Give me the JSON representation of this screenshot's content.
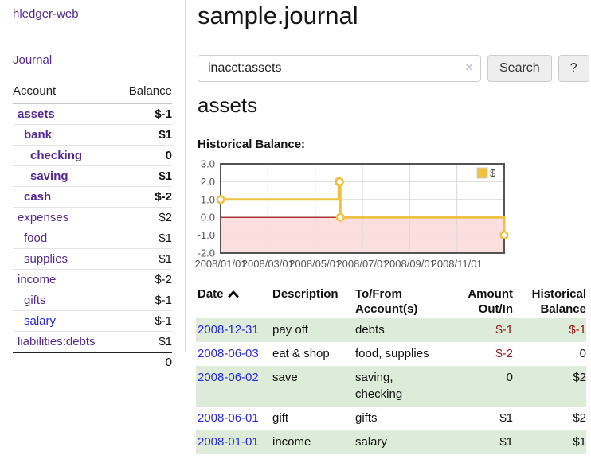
{
  "app": {
    "title": "hledger-web"
  },
  "sidebar": {
    "journal_label": "Journal",
    "accounts": {
      "header_account": "Account",
      "header_balance": "Balance",
      "rows": [
        {
          "name": "assets",
          "balance": "$-1",
          "level": 1,
          "bold": true,
          "name_color": "purple",
          "balance_class": "neg-strong"
        },
        {
          "name": "bank",
          "balance": "$1",
          "level": 2,
          "bold": true,
          "name_color": "purple",
          "balance_class": "normal"
        },
        {
          "name": "checking",
          "balance": "0",
          "level": 3,
          "bold": true,
          "name_color": "purple",
          "balance_class": "normal"
        },
        {
          "name": "saving",
          "balance": "$1",
          "level": 3,
          "bold": true,
          "name_color": "purple",
          "balance_class": "normal"
        },
        {
          "name": "cash",
          "balance": "$-2",
          "level": 2,
          "bold": true,
          "name_color": "purple",
          "balance_class": "neg-strong"
        },
        {
          "name": "expenses",
          "balance": "$2",
          "level": 1,
          "bold": false,
          "name_color": "purple",
          "balance_class": "normal"
        },
        {
          "name": "food",
          "balance": "$1",
          "level": 2,
          "bold": false,
          "name_color": "purple",
          "balance_class": "normal"
        },
        {
          "name": "supplies",
          "balance": "$1",
          "level": 2,
          "bold": false,
          "name_color": "purple",
          "balance_class": "normal"
        },
        {
          "name": "income",
          "balance": "$-2",
          "level": 1,
          "bold": false,
          "name_color": "purple",
          "balance_class": "neg-soft"
        },
        {
          "name": "gifts",
          "balance": "$-1",
          "level": 2,
          "bold": false,
          "name_color": "purple",
          "balance_class": "neg-soft"
        },
        {
          "name": "salary",
          "balance": "$-1",
          "level": 2,
          "bold": false,
          "name_color": "blue",
          "balance_class": "neg-soft"
        },
        {
          "name": "liabilities:debts",
          "balance": "$1",
          "level": 1,
          "bold": false,
          "name_color": "purple",
          "balance_class": "normal"
        }
      ],
      "total": "0"
    }
  },
  "main": {
    "title": "sample.journal",
    "search": {
      "value": "inacct:assets",
      "clear_icon": "×",
      "button_label": "Search",
      "help_label": "?"
    },
    "account_heading": "assets",
    "chart_label": "Historical Balance:"
  },
  "chart_data": {
    "type": "line",
    "style": "step",
    "title": "Historical Balance",
    "series": [
      {
        "name": "$",
        "color": "#edc240",
        "points": [
          [
            "2008-01-01",
            1
          ],
          [
            "2008-06-01",
            2
          ],
          [
            "2008-06-02",
            2
          ],
          [
            "2008-06-03",
            0
          ],
          [
            "2008-12-31",
            -1
          ]
        ]
      }
    ],
    "ylim": [
      -2,
      3
    ],
    "y_ticks": [
      "3.0",
      "2.0",
      "1.0",
      "0.0",
      "-1.0",
      "-2.0"
    ],
    "x_ticks": [
      {
        "label": "2008/01/01",
        "m": 0
      },
      {
        "label": "2008/03/01",
        "m": 2
      },
      {
        "label": "2008/05/01",
        "m": 4
      },
      {
        "label": "2008/07/01",
        "m": 6
      },
      {
        "label": "2008/09/01",
        "m": 8
      },
      {
        "label": "2008/11/01",
        "m": 10
      }
    ],
    "x_range_months": 12,
    "negative_fill": "#fbdede",
    "zero_line_color": "#8b0000",
    "grid_color": "#d9d9d9",
    "border_color": "#545454",
    "axis_label_color": "#545454",
    "legend": {
      "label": "$",
      "position": "top-right"
    }
  },
  "register": {
    "headers": {
      "date": "Date",
      "description": "Description",
      "tofrom": [
        "To/From",
        "Account(s)"
      ],
      "amount": [
        "Amount",
        "Out/In"
      ],
      "balance": [
        "Historical",
        "Balance"
      ]
    },
    "rows": [
      {
        "date": "2008-12-31",
        "description": "pay off",
        "accounts": "debts",
        "amount": "$-1",
        "balance": "$-1",
        "amount_class": "neg",
        "balance_class": "neg"
      },
      {
        "date": "2008-06-03",
        "description": "eat & shop",
        "accounts": "food, supplies",
        "amount": "$-2",
        "balance": "0",
        "amount_class": "neg",
        "balance_class": "normal"
      },
      {
        "date": "2008-06-02",
        "description": "save",
        "accounts": "saving, checking",
        "amount": "0",
        "balance": "$2",
        "amount_class": "normal",
        "balance_class": "normal"
      },
      {
        "date": "2008-06-01",
        "description": "gift",
        "accounts": "gifts",
        "amount": "$1",
        "balance": "$2",
        "amount_class": "normal",
        "balance_class": "normal"
      },
      {
        "date": "2008-01-01",
        "description": "income",
        "accounts": "salary",
        "amount": "$1",
        "balance": "$1",
        "amount_class": "normal",
        "balance_class": "normal"
      }
    ]
  },
  "colors": {
    "link_purple": "#552a90",
    "link_blue": "#2929e0",
    "negative_strong": "#941616",
    "negative_soft": "#c47d7d",
    "row_green": "#dcecd8",
    "series_yellow": "#edc240"
  }
}
